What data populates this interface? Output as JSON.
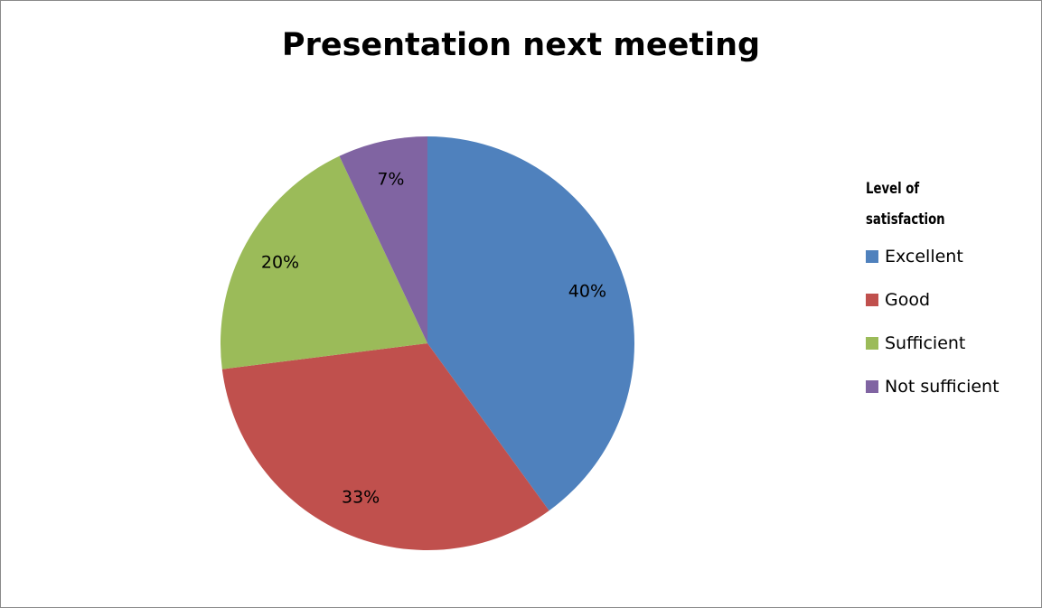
{
  "chart_data": {
    "type": "pie",
    "title": "Presentation next meeting",
    "legend_title_line1": "Level of",
    "legend_title_line2": "satisfaction",
    "legend_position": "right",
    "categories": [
      "Excellent",
      "Good",
      "Sufficient",
      "Not sufficient"
    ],
    "values": [
      40,
      33,
      20,
      7
    ],
    "labels": [
      "40%",
      "33%",
      "20%",
      "7%"
    ],
    "colors": [
      "#4F81BD",
      "#C0504D",
      "#9BBB59",
      "#8064A2"
    ]
  }
}
